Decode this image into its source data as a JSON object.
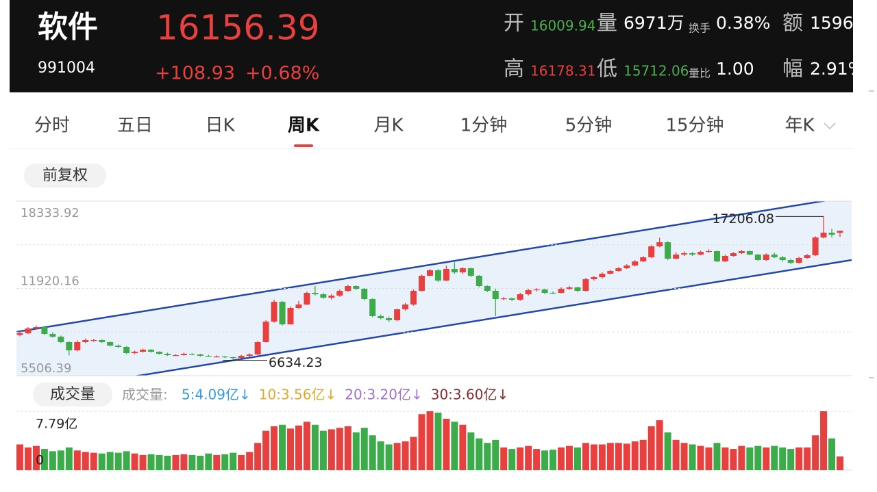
{
  "header": {
    "name": "软件",
    "code": "991004",
    "price": "16156.39",
    "change": "+108.93",
    "change_pct": "+0.68%",
    "stats": [
      {
        "label": "开",
        "value": "16009.94"
      },
      {
        "label": "量",
        "value": "6971万"
      },
      {
        "label": "换手",
        "value": "0.38%"
      },
      {
        "label": "额",
        "value": "1596"
      },
      {
        "label": "高",
        "value": "16178.31"
      },
      {
        "label": "低",
        "value": "15712.06"
      },
      {
        "label": "量比",
        "value": "1.00"
      },
      {
        "label": "幅",
        "value": "2.91%"
      }
    ]
  },
  "tabs": [
    "分时",
    "五日",
    "日K",
    "周K",
    "月K",
    "1分钟",
    "5分钟",
    "15分钟",
    "年K"
  ],
  "active_tab": "周K",
  "adjust": "前复权",
  "chart_data": {
    "type": "candlestick",
    "ylim": [
      5506.39,
      18333.92
    ],
    "yticks": [
      5506.39,
      11920.16,
      18333.92
    ],
    "grid": true,
    "up_color": "#e8403f",
    "down_color": "#3cab4a",
    "annotations": [
      {
        "label": "17206.08",
        "value": 17206.08
      },
      {
        "label": "6634.23",
        "value": 6634.23
      }
    ],
    "ohlc": [
      [
        8500,
        8750,
        8400,
        8625
      ],
      [
        8625,
        9080,
        8550,
        8977
      ],
      [
        8977,
        9200,
        8900,
        9077
      ],
      [
        9077,
        9150,
        8500,
        8574
      ],
      [
        8574,
        8700,
        8300,
        8373
      ],
      [
        8373,
        8450,
        7900,
        7971
      ],
      [
        7971,
        8050,
        7000,
        7367
      ],
      [
        7367,
        8100,
        7300,
        7971
      ],
      [
        7971,
        8250,
        7900,
        8122
      ],
      [
        8100,
        8200,
        8000,
        8122
      ],
      [
        8122,
        8180,
        7900,
        7971
      ],
      [
        7971,
        8020,
        7650,
        7719
      ],
      [
        7719,
        7800,
        7550,
        7619
      ],
      [
        7619,
        7680,
        7100,
        7166
      ],
      [
        7166,
        7350,
        7100,
        7267
      ],
      [
        7267,
        7500,
        7200,
        7417
      ],
      [
        7417,
        7450,
        7200,
        7267
      ],
      [
        7267,
        7300,
        7050,
        7116
      ],
      [
        7116,
        7200,
        6950,
        7015
      ],
      [
        7000,
        7100,
        6950,
        7015
      ],
      [
        7015,
        7200,
        6980,
        7116
      ],
      [
        7116,
        7150,
        7000,
        7065
      ],
      [
        7065,
        7120,
        6900,
        6965
      ],
      [
        6965,
        7050,
        6880,
        6914
      ],
      [
        6900,
        7000,
        6850,
        6914
      ],
      [
        6914,
        6960,
        6800,
        6864
      ],
      [
        6864,
        6900,
        6634.23,
        6814
      ],
      [
        6814,
        7050,
        6780,
        6965
      ],
      [
        6965,
        7150,
        6900,
        7065
      ],
      [
        7065,
        8050,
        7000,
        7971
      ],
      [
        7971,
        9600,
        7950,
        9480
      ],
      [
        9480,
        11100,
        9400,
        10938
      ],
      [
        10938,
        11000,
        9200,
        9279
      ],
      [
        9279,
        10600,
        9250,
        10486
      ],
      [
        10486,
        11000,
        10400,
        10737
      ],
      [
        10737,
        11700,
        10700,
        11592
      ],
      [
        11592,
        12100,
        11400,
        11492
      ],
      [
        11492,
        11600,
        11150,
        11240
      ],
      [
        11240,
        11500,
        11100,
        11391
      ],
      [
        11391,
        11850,
        11300,
        11743
      ],
      [
        11743,
        12200,
        11650,
        12095
      ],
      [
        12095,
        12150,
        11800,
        11894
      ],
      [
        11894,
        11950,
        11050,
        11140
      ],
      [
        11140,
        11200,
        9800,
        9882
      ],
      [
        9882,
        10000,
        9650,
        9731
      ],
      [
        9731,
        9850,
        9450,
        9580
      ],
      [
        9580,
        10450,
        9500,
        10385
      ],
      [
        10385,
        10850,
        10300,
        10737
      ],
      [
        10737,
        11850,
        10650,
        11743
      ],
      [
        11743,
        12950,
        11700,
        12850
      ],
      [
        12850,
        13350,
        12800,
        13252
      ],
      [
        13252,
        13350,
        12400,
        12498
      ],
      [
        12498,
        13600,
        12450,
        13353
      ],
      [
        13353,
        13850,
        13000,
        13101
      ],
      [
        13101,
        13500,
        13000,
        13403
      ],
      [
        13403,
        13450,
        12750,
        12850
      ],
      [
        12850,
        12900,
        12000,
        12095
      ],
      [
        12095,
        12150,
        11650,
        11743
      ],
      [
        11743,
        11900,
        9880,
        11140
      ],
      [
        11140,
        11300,
        11050,
        11190
      ],
      [
        11190,
        11250,
        10980,
        11089
      ],
      [
        11089,
        11600,
        11000,
        11492
      ],
      [
        11492,
        11900,
        11400,
        11794
      ],
      [
        11794,
        11950,
        11700,
        11844
      ],
      [
        11844,
        11900,
        11500,
        11592
      ],
      [
        11600,
        11700,
        11500,
        11592
      ],
      [
        11592,
        12000,
        11550,
        11894
      ],
      [
        11894,
        12100,
        11800,
        11995
      ],
      [
        11995,
        12050,
        11650,
        11743
      ],
      [
        11743,
        12700,
        11700,
        12598
      ],
      [
        12598,
        12850,
        12500,
        12749
      ],
      [
        12749,
        13100,
        12650,
        13001
      ],
      [
        13001,
        13300,
        12950,
        13202
      ],
      [
        13202,
        13500,
        13150,
        13403
      ],
      [
        13403,
        13700,
        13350,
        13604
      ],
      [
        13604,
        14000,
        13550,
        13906
      ],
      [
        13906,
        14300,
        13850,
        14208
      ],
      [
        14208,
        15100,
        14150,
        15013
      ],
      [
        15013,
        15650,
        14950,
        15315
      ],
      [
        15315,
        15400,
        14000,
        14107
      ],
      [
        14107,
        14600,
        14050,
        14409
      ],
      [
        14409,
        14650,
        14300,
        14510
      ],
      [
        14510,
        14600,
        14300,
        14409
      ],
      [
        14409,
        14700,
        14350,
        14610
      ],
      [
        14610,
        14800,
        14550,
        14661
      ],
      [
        14661,
        14700,
        13850,
        13906
      ],
      [
        13906,
        14400,
        13850,
        14309
      ],
      [
        14309,
        14600,
        14250,
        14510
      ],
      [
        14510,
        14750,
        14450,
        14661
      ],
      [
        14661,
        14700,
        14350,
        14409
      ],
      [
        14409,
        14450,
        13950,
        14007
      ],
      [
        14007,
        14500,
        13950,
        14409
      ],
      [
        14409,
        14550,
        14150,
        14208
      ],
      [
        14208,
        14300,
        13900,
        14007
      ],
      [
        14007,
        14100,
        13700,
        13806
      ],
      [
        13806,
        14250,
        13750,
        14158
      ],
      [
        14158,
        14450,
        14100,
        14359
      ],
      [
        14359,
        15750,
        14300,
        15667
      ],
      [
        15667,
        17206.08,
        15600,
        16019
      ],
      [
        16019,
        16300,
        15650,
        15868
      ],
      [
        16009.94,
        16178.31,
        15712.06,
        16156.39
      ]
    ]
  },
  "volume_chart": {
    "type": "bar",
    "title": "成交量",
    "ma_label": "成交量:",
    "ma": [
      "5:4.09亿↓",
      "10:3.56亿↓",
      "20:3.20亿↓",
      "30:3.60亿↓"
    ],
    "ma_colors": [
      "#3a9ad9",
      "#e0a82a",
      "#a070d0",
      "#8b2c2c"
    ],
    "ylim": [
      0,
      7.79
    ],
    "yticks": [
      0,
      {
        "value": 7.79,
        "label": "7.79亿"
      }
    ],
    "values": [
      3.4,
      3.0,
      3.2,
      2.8,
      2.5,
      2.6,
      3.0,
      2.6,
      2.4,
      2.3,
      2.2,
      2.4,
      2.3,
      2.5,
      2.2,
      2.0,
      2.1,
      2.0,
      1.9,
      2.0,
      2.1,
      2.0,
      1.9,
      2.2,
      2.0,
      2.1,
      2.3,
      2.0,
      2.4,
      3.6,
      5.2,
      5.8,
      6.0,
      5.5,
      5.9,
      6.4,
      6.0,
      5.2,
      5.4,
      5.6,
      5.8,
      5.0,
      5.6,
      4.6,
      3.8,
      3.4,
      3.6,
      3.8,
      4.4,
      7.4,
      7.79,
      7.6,
      6.8,
      6.4,
      6.0,
      5.0,
      4.2,
      3.6,
      4.0,
      3.0,
      2.8,
      3.0,
      3.2,
      2.8,
      2.6,
      2.7,
      3.0,
      3.2,
      3.0,
      3.6,
      3.4,
      3.4,
      3.6,
      3.6,
      3.5,
      3.8,
      4.0,
      5.8,
      6.6,
      5.0,
      4.0,
      3.6,
      3.4,
      3.2,
      3.0,
      3.6,
      3.0,
      2.8,
      3.2,
      3.0,
      3.2,
      3.0,
      3.2,
      3.0,
      2.8,
      3.0,
      3.0,
      4.6,
      7.79,
      4.2,
      1.8
    ]
  }
}
